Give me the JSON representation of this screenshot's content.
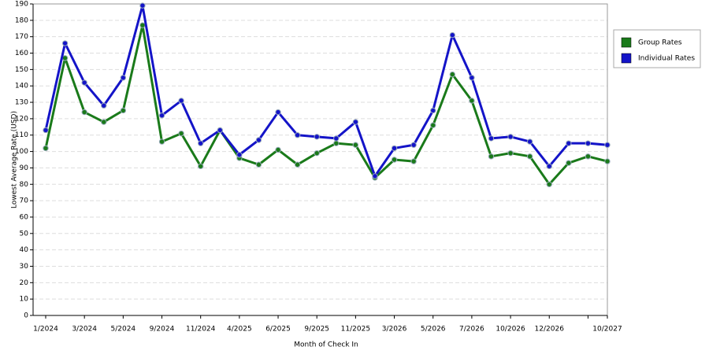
{
  "chart_data": {
    "type": "line",
    "x_label": "Month of Check In",
    "y_label": "Lowest Average Rate (USD)",
    "categories": [
      "1/2024",
      null,
      "3/2024",
      null,
      "5/2024",
      null,
      "9/2024",
      null,
      "11/2024",
      null,
      "4/2025",
      null,
      "6/2025",
      null,
      "9/2025",
      null,
      "11/2025",
      null,
      "3/2026",
      null,
      "5/2026",
      null,
      "7/2026",
      null,
      "10/2026",
      null,
      "12/2026",
      null,
      null,
      "10/2027"
    ],
    "series": [
      {
        "name": "Group Rates",
        "color": "#1a7a1a",
        "values": [
          102,
          157,
          124,
          118,
          125,
          177,
          106,
          111,
          91,
          113,
          96,
          92,
          101,
          92,
          99,
          105,
          104,
          84,
          95,
          94,
          116,
          147,
          131,
          97,
          99,
          97,
          80,
          93,
          97,
          94
        ]
      },
      {
        "name": "Individual Rates",
        "color": "#1414c8",
        "values": [
          113,
          166,
          142,
          128,
          145,
          189,
          122,
          131,
          105,
          113,
          98,
          107,
          124,
          110,
          109,
          108,
          118,
          85,
          102,
          104,
          125,
          171,
          145,
          108,
          109,
          106,
          91,
          105,
          105,
          104
        ]
      }
    ],
    "ylim": [
      0,
      190
    ],
    "yticks": [
      0,
      10,
      20,
      30,
      40,
      50,
      60,
      70,
      80,
      90,
      100,
      110,
      120,
      130,
      140,
      150,
      160,
      170,
      180,
      190
    ],
    "grid": true,
    "legend": "right"
  }
}
